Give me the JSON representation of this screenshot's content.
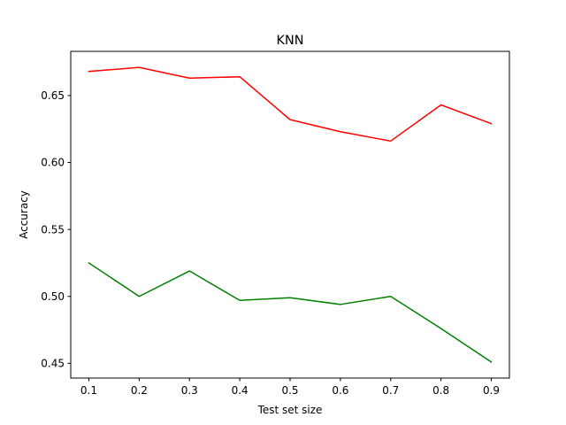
{
  "chart_data": {
    "type": "line",
    "title": "KNN",
    "xlabel": "Test set size",
    "ylabel": "Accuracy",
    "x": [
      0.1,
      0.2,
      0.3,
      0.4,
      0.5,
      0.6,
      0.7,
      0.8,
      0.9
    ],
    "xlim": [
      0.064,
      0.936
    ],
    "ylim": [
      0.439,
      0.683
    ],
    "xticks": [
      0.1,
      0.2,
      0.3,
      0.4,
      0.5,
      0.6,
      0.7,
      0.8,
      0.9
    ],
    "xtick_labels": [
      "0.1",
      "0.2",
      "0.3",
      "0.4",
      "0.5",
      "0.6",
      "0.7",
      "0.8",
      "0.9"
    ],
    "yticks": [
      0.45,
      0.5,
      0.55,
      0.6,
      0.65
    ],
    "ytick_labels": [
      "0.45",
      "0.50",
      "0.55",
      "0.60",
      "0.65"
    ],
    "grid": false,
    "legend": "none",
    "series": [
      {
        "color": "#ff0000",
        "values": [
          0.668,
          0.671,
          0.663,
          0.664,
          0.632,
          0.623,
          0.616,
          0.643,
          0.629
        ]
      },
      {
        "color": "#008000",
        "values": [
          0.525,
          0.5,
          0.519,
          0.497,
          0.499,
          0.494,
          0.5,
          0.476,
          0.451
        ]
      }
    ]
  }
}
